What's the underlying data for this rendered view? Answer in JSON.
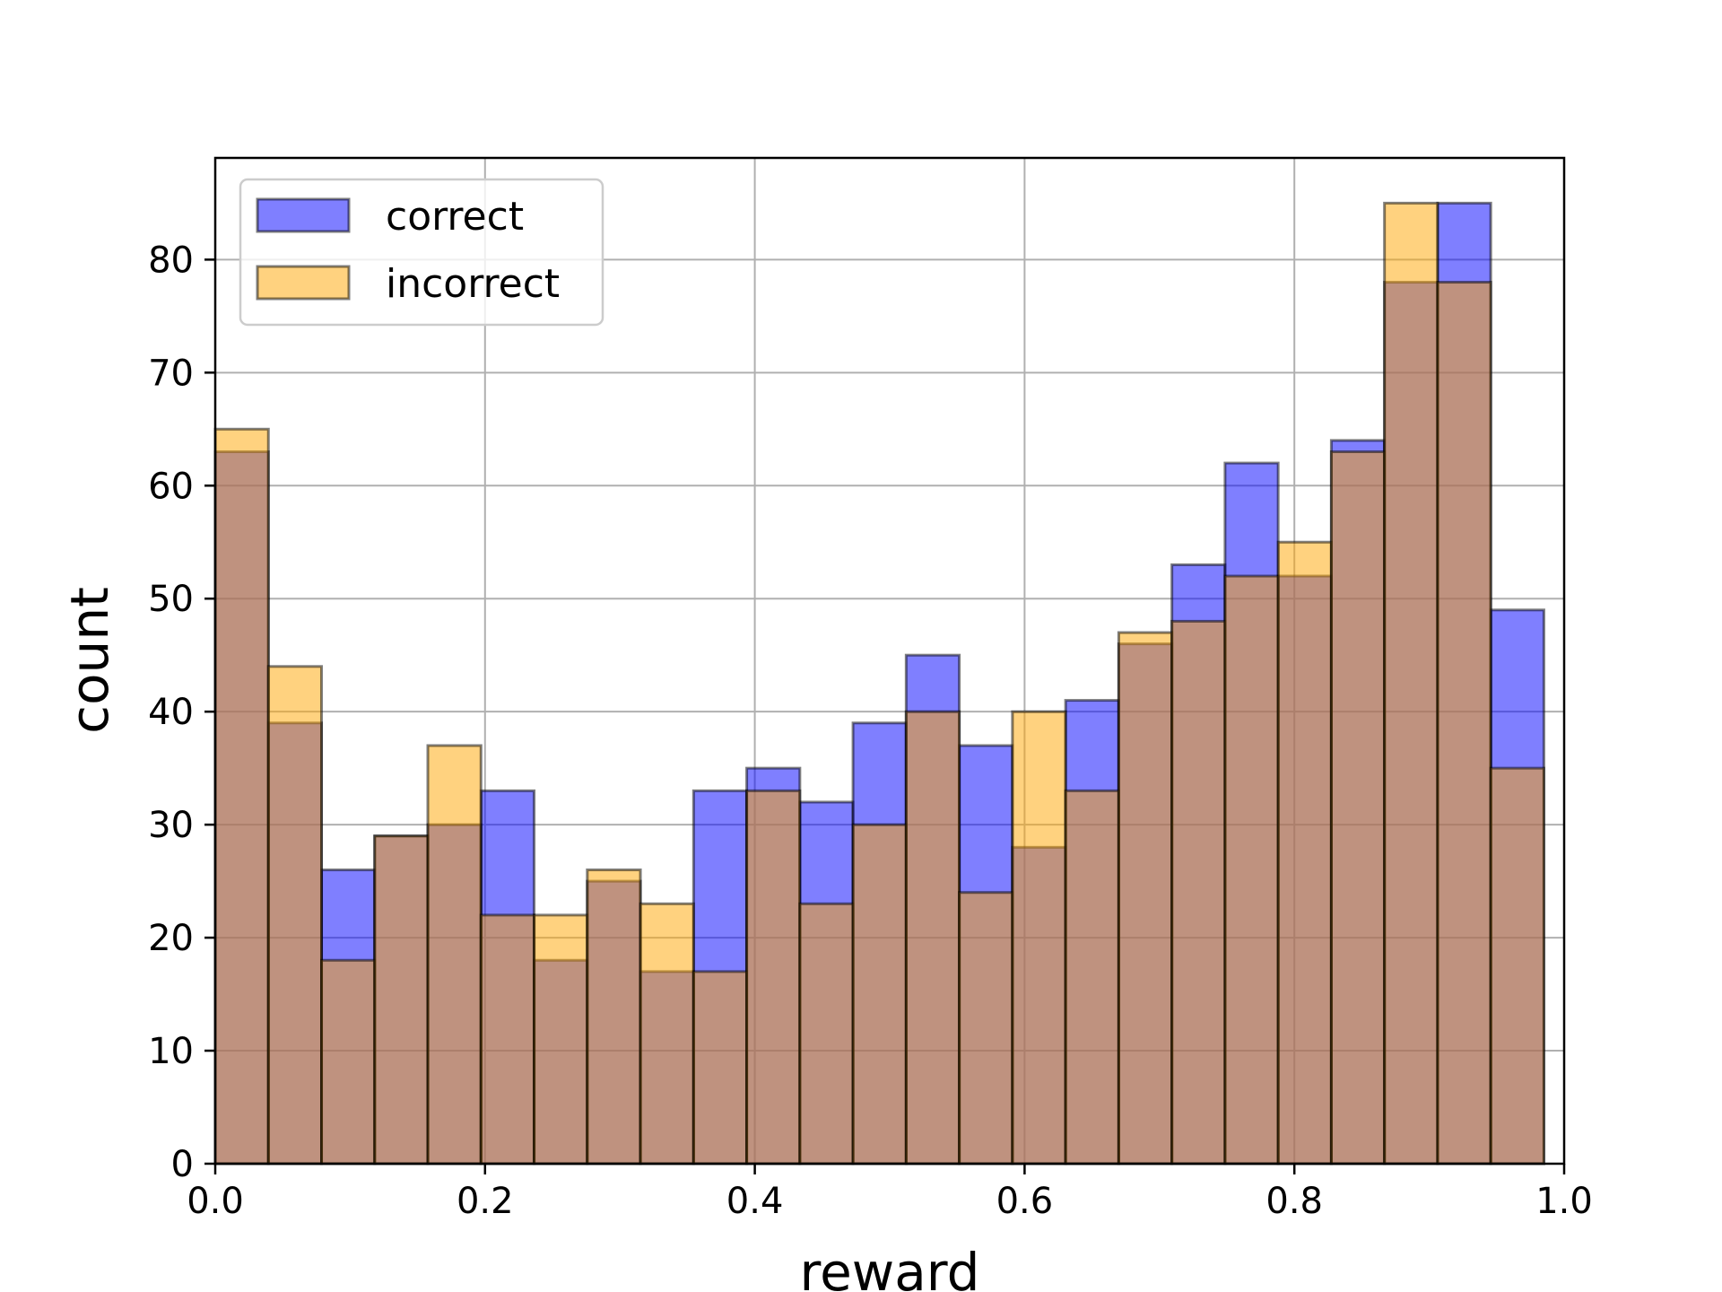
{
  "chart_data": {
    "type": "bar",
    "subtype": "overlaid-histogram",
    "xlabel": "reward",
    "ylabel": "count",
    "xlim": [
      0.0,
      1.0
    ],
    "ylim": [
      0,
      89
    ],
    "xticks": [
      "0.0",
      "0.2",
      "0.4",
      "0.6",
      "0.8",
      "1.0"
    ],
    "yticks": [
      "0",
      "10",
      "20",
      "30",
      "40",
      "50",
      "60",
      "70",
      "80"
    ],
    "grid": true,
    "legend_position": "top-left",
    "bin_edges": [
      0.0,
      0.0394,
      0.0788,
      0.1182,
      0.1576,
      0.197,
      0.2364,
      0.2758,
      0.3152,
      0.3546,
      0.394,
      0.4334,
      0.4728,
      0.5122,
      0.5516,
      0.591,
      0.6304,
      0.6698,
      0.7092,
      0.7486,
      0.788,
      0.8274,
      0.8668,
      0.9062,
      0.9456,
      0.985
    ],
    "series": [
      {
        "name": "correct",
        "color": "#0000ff",
        "values": [
          63,
          39,
          26,
          29,
          30,
          33,
          18,
          25,
          17,
          33,
          35,
          32,
          39,
          45,
          37,
          28,
          41,
          46,
          53,
          62,
          52,
          64,
          78,
          85,
          49
        ]
      },
      {
        "name": "incorrect",
        "color": "#ffa500",
        "values": [
          65,
          44,
          18,
          29,
          37,
          22,
          22,
          26,
          23,
          17,
          33,
          23,
          30,
          40,
          24,
          40,
          33,
          47,
          48,
          52,
          55,
          63,
          85,
          78,
          35
        ]
      }
    ],
    "overlap_color": "#bf9380"
  }
}
